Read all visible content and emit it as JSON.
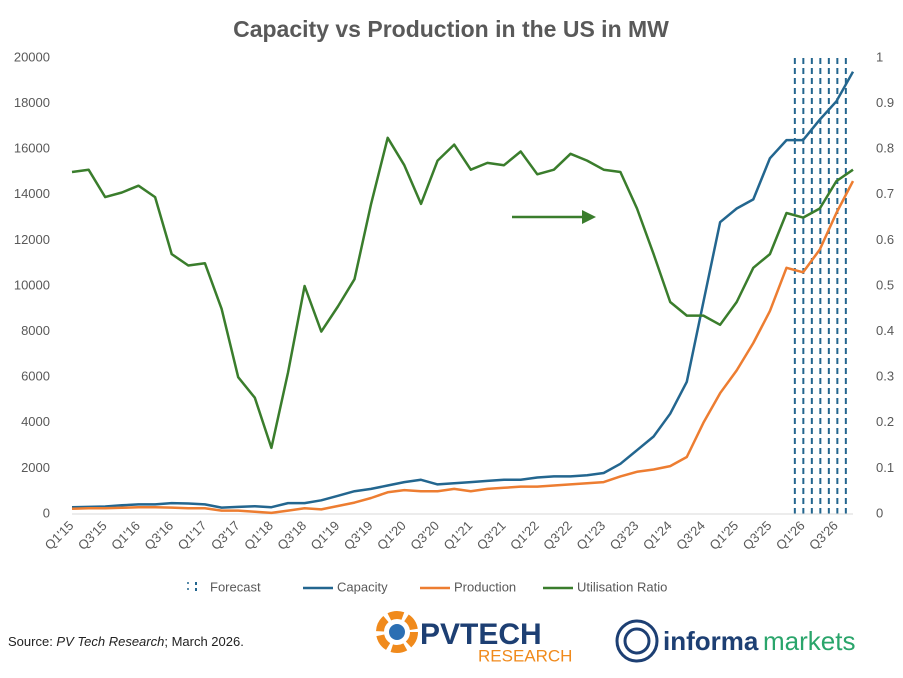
{
  "chart_data": {
    "type": "line",
    "title": "Capacity vs Production in the US in MW",
    "categories": [
      "Q1'15",
      null,
      "Q3'15",
      null,
      "Q1'16",
      null,
      "Q3'16",
      null,
      "Q1'17",
      null,
      "Q3'17",
      null,
      "Q1'18",
      null,
      "Q3'18",
      null,
      "Q1'19",
      null,
      "Q3'19",
      null,
      "Q1'20",
      null,
      "Q3'20",
      null,
      "Q1'21",
      null,
      "Q3'21",
      null,
      "Q1'22",
      null,
      "Q3'22",
      null,
      "Q1'23",
      null,
      "Q3'23",
      null,
      "Q1'24",
      null,
      "Q3'24",
      null,
      "Q1'25",
      null,
      "Q3'25",
      null,
      "Q1'26",
      null,
      "Q3'26",
      null
    ],
    "series": [
      {
        "name": "Capacity",
        "color": "#23668f",
        "values": [
          300,
          310,
          330,
          380,
          420,
          420,
          480,
          460,
          420,
          280,
          310,
          340,
          300,
          480,
          480,
          600,
          800,
          1000,
          1100,
          1250,
          1400,
          1500,
          1300,
          1350,
          1400,
          1450,
          1500,
          1500,
          1600,
          1650,
          1650,
          1700,
          1800,
          2200,
          2800,
          3400,
          4400,
          5800,
          9300,
          12800,
          13400,
          13800,
          15600,
          16400,
          16400,
          17300,
          18100,
          19400
        ]
      },
      {
        "name": "Production",
        "color": "#ed7d31",
        "values": [
          230,
          250,
          250,
          270,
          300,
          300,
          280,
          250,
          250,
          150,
          150,
          100,
          50,
          150,
          250,
          200,
          350,
          500,
          700,
          950,
          1050,
          1000,
          1000,
          1100,
          1000,
          1100,
          1150,
          1200,
          1200,
          1250,
          1300,
          1350,
          1400,
          1650,
          1850,
          1950,
          2100,
          2500,
          4000,
          5300,
          6300,
          7500,
          8900,
          10800,
          10600,
          11600,
          13200,
          14600
        ]
      },
      {
        "name": "Utilisation Ratio",
        "color": "#3a7d2c",
        "axis": "y2",
        "values": [
          0.75,
          0.755,
          0.695,
          0.705,
          0.72,
          0.695,
          0.57,
          0.545,
          0.55,
          0.45,
          0.3,
          0.255,
          0.145,
          0.31,
          0.5,
          0.4,
          0.455,
          0.515,
          0.68,
          0.825,
          0.765,
          0.68,
          0.775,
          0.81,
          0.755,
          0.77,
          0.765,
          0.795,
          0.745,
          0.755,
          0.79,
          0.775,
          0.755,
          0.75,
          0.67,
          0.57,
          0.465,
          0.435,
          0.435,
          0.415,
          0.465,
          0.54,
          0.57,
          0.66,
          0.65,
          0.67,
          0.73,
          0.755
        ]
      }
    ],
    "forecast": {
      "name": "Forecast",
      "color": "#23668f",
      "start": "Q1'26"
    },
    "ylim": [
      0,
      20000
    ],
    "yticks": [
      0,
      2000,
      4000,
      6000,
      8000,
      10000,
      12000,
      14000,
      16000,
      18000,
      20000
    ],
    "y2lim": [
      0,
      1
    ],
    "y2ticks": [
      0,
      0.1,
      0.2,
      0.3,
      0.4,
      0.5,
      0.6,
      0.7,
      0.8,
      0.9,
      1
    ],
    "grid": false,
    "legend": "bottom"
  },
  "source": {
    "prefix": "Source: ",
    "name": "PV Tech Research",
    "suffix": "; March 2026."
  },
  "logos": {
    "pvtech": "PVTECH",
    "pvtech_sub": "RESEARCH",
    "informa": "informa",
    "markets": "markets"
  }
}
